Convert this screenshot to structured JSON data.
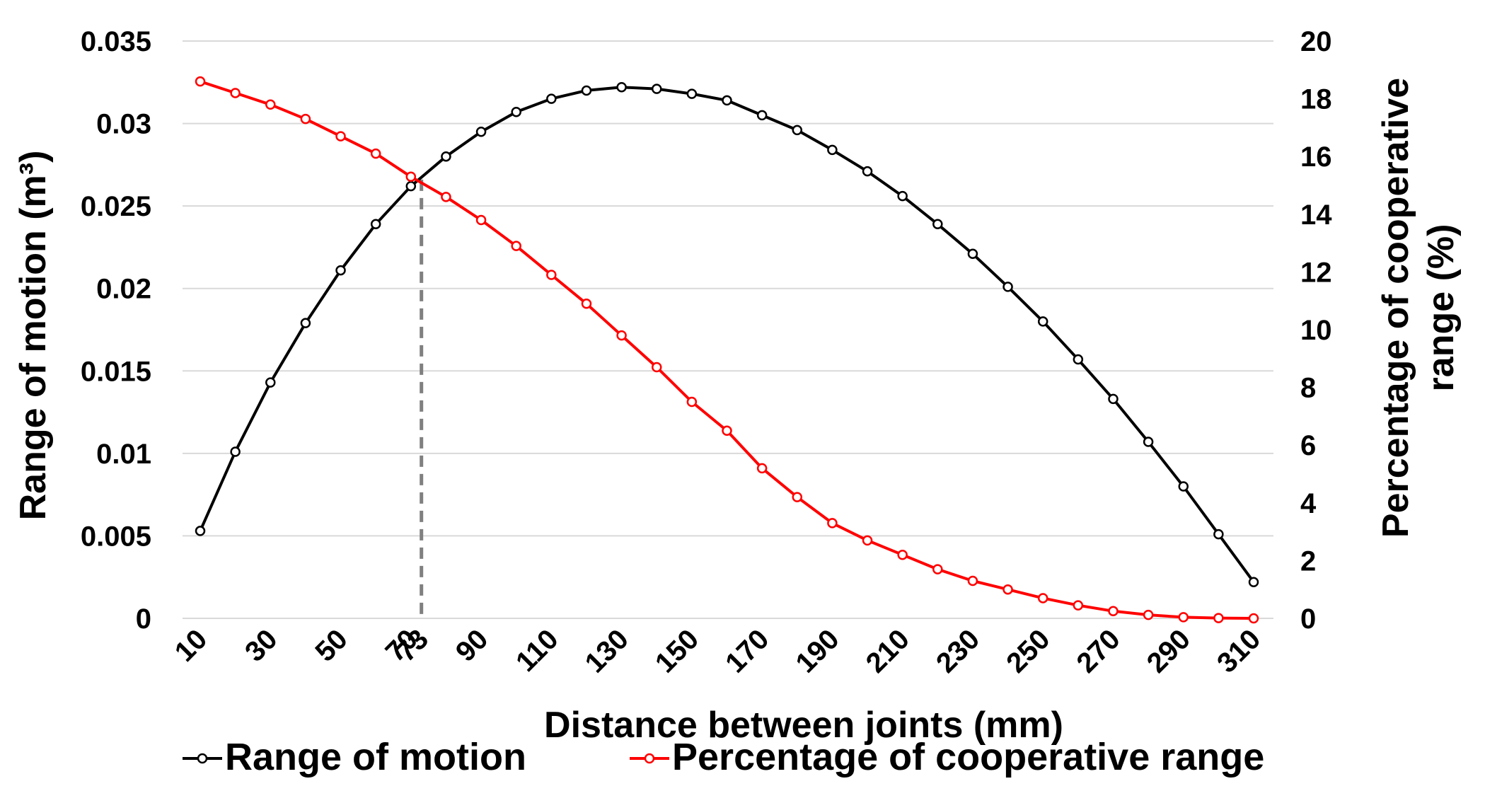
{
  "chart_data": {
    "type": "line",
    "xlabel": "Distance between joints (mm)",
    "ylabel_left": "Range of motion (m³)",
    "ylabel_right": "Percentage of cooperative range (%)",
    "x_tick_labels": [
      "10",
      "30",
      "50",
      "70",
      "73",
      "90",
      "110",
      "130",
      "150",
      "170",
      "190",
      "210",
      "230",
      "250",
      "270",
      "290",
      "310"
    ],
    "x_tick_values": [
      10,
      30,
      50,
      70,
      73,
      90,
      110,
      130,
      150,
      170,
      190,
      210,
      230,
      250,
      270,
      290,
      310
    ],
    "xlim": [
      10,
      310
    ],
    "ylim_left": [
      0,
      0.035
    ],
    "yticks_left": [
      "0",
      "0.005",
      "0.01",
      "0.015",
      "0.02",
      "0.025",
      "0.03",
      "0.035"
    ],
    "ylim_right": [
      0,
      20
    ],
    "yticks_right": [
      "0",
      "2",
      "4",
      "6",
      "8",
      "10",
      "12",
      "14",
      "16",
      "18",
      "20"
    ],
    "grid": true,
    "legend_position": "bottom",
    "annotation": {
      "x": 73,
      "y_right": 15.2,
      "style": "dashed vertical line"
    },
    "x": [
      10,
      20,
      30,
      40,
      50,
      60,
      70,
      80,
      90,
      100,
      110,
      120,
      130,
      140,
      150,
      160,
      170,
      180,
      190,
      200,
      210,
      220,
      230,
      240,
      250,
      260,
      270,
      280,
      290,
      300,
      310
    ],
    "series": [
      {
        "name": "Range of motion",
        "axis": "left",
        "color": "#000000",
        "values": [
          0.0053,
          0.0101,
          0.0143,
          0.0179,
          0.0211,
          0.0239,
          0.0262,
          0.028,
          0.0295,
          0.0307,
          0.0315,
          0.032,
          0.0322,
          0.0321,
          0.0318,
          0.0314,
          0.0305,
          0.0296,
          0.0284,
          0.0271,
          0.0256,
          0.0239,
          0.0221,
          0.0201,
          0.018,
          0.0157,
          0.0133,
          0.0107,
          0.008,
          0.0051,
          0.0022
        ]
      },
      {
        "name": "Percentage of cooperative range",
        "axis": "right",
        "color": "#ff0000",
        "values": [
          18.6,
          18.2,
          17.8,
          17.3,
          16.7,
          16.1,
          15.3,
          14.6,
          13.8,
          12.9,
          11.9,
          10.9,
          9.8,
          8.7,
          7.5,
          6.5,
          5.2,
          4.2,
          3.3,
          2.7,
          2.2,
          1.7,
          1.3,
          1.0,
          0.7,
          0.45,
          0.25,
          0.12,
          0.04,
          0.01,
          0.0
        ]
      }
    ]
  }
}
